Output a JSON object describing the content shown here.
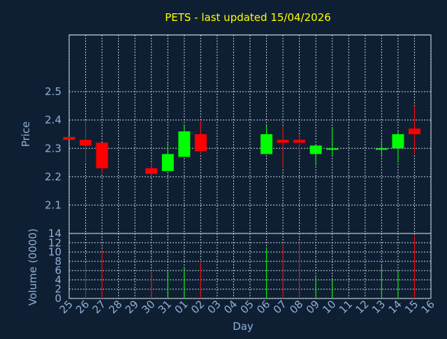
{
  "chart_data": [
    {
      "type": "candlestick",
      "title": "PETS - last updated 15/04/2026",
      "xlabel": "Day",
      "ylabel": "Price",
      "yticks": [
        "2.1",
        "2.2",
        "2.3",
        "2.4",
        "2.5"
      ],
      "ylim": [
        2.0,
        2.7
      ],
      "grid": true,
      "categories": [
        "25",
        "26",
        "27",
        "28",
        "29",
        "30",
        "31",
        "01",
        "02",
        "03",
        "04",
        "05",
        "06",
        "07",
        "08",
        "09",
        "10",
        "11",
        "12",
        "13",
        "14",
        "15",
        "16"
      ],
      "candles": [
        {
          "x": "25",
          "open": 2.33,
          "high": 2.34,
          "low": 2.33,
          "close": 2.34,
          "color": "#ff0000"
        },
        {
          "x": "26",
          "open": 2.33,
          "high": 2.4,
          "low": 2.25,
          "close": 2.31,
          "color": "#ff0000"
        },
        {
          "x": "27",
          "open": 2.32,
          "high": 2.32,
          "low": 2.21,
          "close": 2.23,
          "color": "#ff0000"
        },
        {
          "x": "30",
          "open": 2.23,
          "high": 2.25,
          "low": 2.2,
          "close": 2.21,
          "color": "#ff0000"
        },
        {
          "x": "31",
          "open": 2.22,
          "high": 2.32,
          "low": 2.22,
          "close": 2.28,
          "color": "#00ff00"
        },
        {
          "x": "01",
          "open": 2.27,
          "high": 2.38,
          "low": 2.27,
          "close": 2.36,
          "color": "#00ff00"
        },
        {
          "x": "02",
          "open": 2.35,
          "high": 2.4,
          "low": 2.28,
          "close": 2.29,
          "color": "#ff0000"
        },
        {
          "x": "06",
          "open": 2.28,
          "high": 2.38,
          "low": 2.28,
          "close": 2.35,
          "color": "#00ff00"
        },
        {
          "x": "07",
          "open": 2.33,
          "high": 2.38,
          "low": 2.23,
          "close": 2.32,
          "color": "#ff0000"
        },
        {
          "x": "08",
          "open": 2.33,
          "high": 2.35,
          "low": 2.28,
          "close": 2.32,
          "color": "#ff0000"
        },
        {
          "x": "09",
          "open": 2.28,
          "high": 2.31,
          "low": 2.24,
          "close": 2.31,
          "color": "#00ff00"
        },
        {
          "x": "10",
          "open": 2.3,
          "high": 2.37,
          "low": 2.27,
          "close": 2.3,
          "color": "#00ff00"
        },
        {
          "x": "13",
          "open": 2.3,
          "high": 2.33,
          "low": 2.27,
          "close": 2.3,
          "color": "#00ff00"
        },
        {
          "x": "14",
          "open": 2.3,
          "high": 2.36,
          "low": 2.25,
          "close": 2.35,
          "color": "#00ff00"
        },
        {
          "x": "15",
          "open": 2.37,
          "high": 2.45,
          "low": 2.28,
          "close": 2.35,
          "color": "#ff0000"
        }
      ]
    },
    {
      "type": "bar",
      "xlabel": "Day",
      "ylabel": "Volume (0000)",
      "yticks": [
        "0",
        "2",
        "4",
        "6",
        "8",
        "10",
        "12",
        "14"
      ],
      "ylim": [
        0,
        14
      ],
      "grid": true,
      "categories": [
        "25",
        "26",
        "27",
        "28",
        "29",
        "30",
        "31",
        "01",
        "02",
        "03",
        "04",
        "05",
        "06",
        "07",
        "08",
        "09",
        "10",
        "11",
        "12",
        "13",
        "14",
        "15",
        "16"
      ],
      "bars": [
        {
          "x": "26",
          "value": 7.5,
          "color": "#ff0000"
        },
        {
          "x": "27",
          "value": 10.5,
          "color": "#ff0000"
        },
        {
          "x": "30",
          "value": 6.0,
          "color": "#ff0000"
        },
        {
          "x": "31",
          "value": 6.0,
          "color": "#00ff00"
        },
        {
          "x": "01",
          "value": 6.5,
          "color": "#00ff00"
        },
        {
          "x": "02",
          "value": 8.0,
          "color": "#ff0000"
        },
        {
          "x": "06",
          "value": 11.0,
          "color": "#00ff00"
        },
        {
          "x": "07",
          "value": 11.5,
          "color": "#ff0000"
        },
        {
          "x": "08",
          "value": 12.0,
          "color": "#ff0000"
        },
        {
          "x": "09",
          "value": 5.0,
          "color": "#00ff00"
        },
        {
          "x": "10",
          "value": 4.0,
          "color": "#00ff00"
        },
        {
          "x": "13",
          "value": 7.0,
          "color": "#00ff00"
        },
        {
          "x": "14",
          "value": 6.0,
          "color": "#00ff00"
        },
        {
          "x": "15",
          "value": 13.5,
          "color": "#ff0000"
        }
      ]
    }
  ],
  "colors": {
    "background": "#0f1f33",
    "title": "#ffff00",
    "labels": "#8fb0d8",
    "grid": "#c8d0dc",
    "up": "#00ff00",
    "down": "#ff0000"
  }
}
